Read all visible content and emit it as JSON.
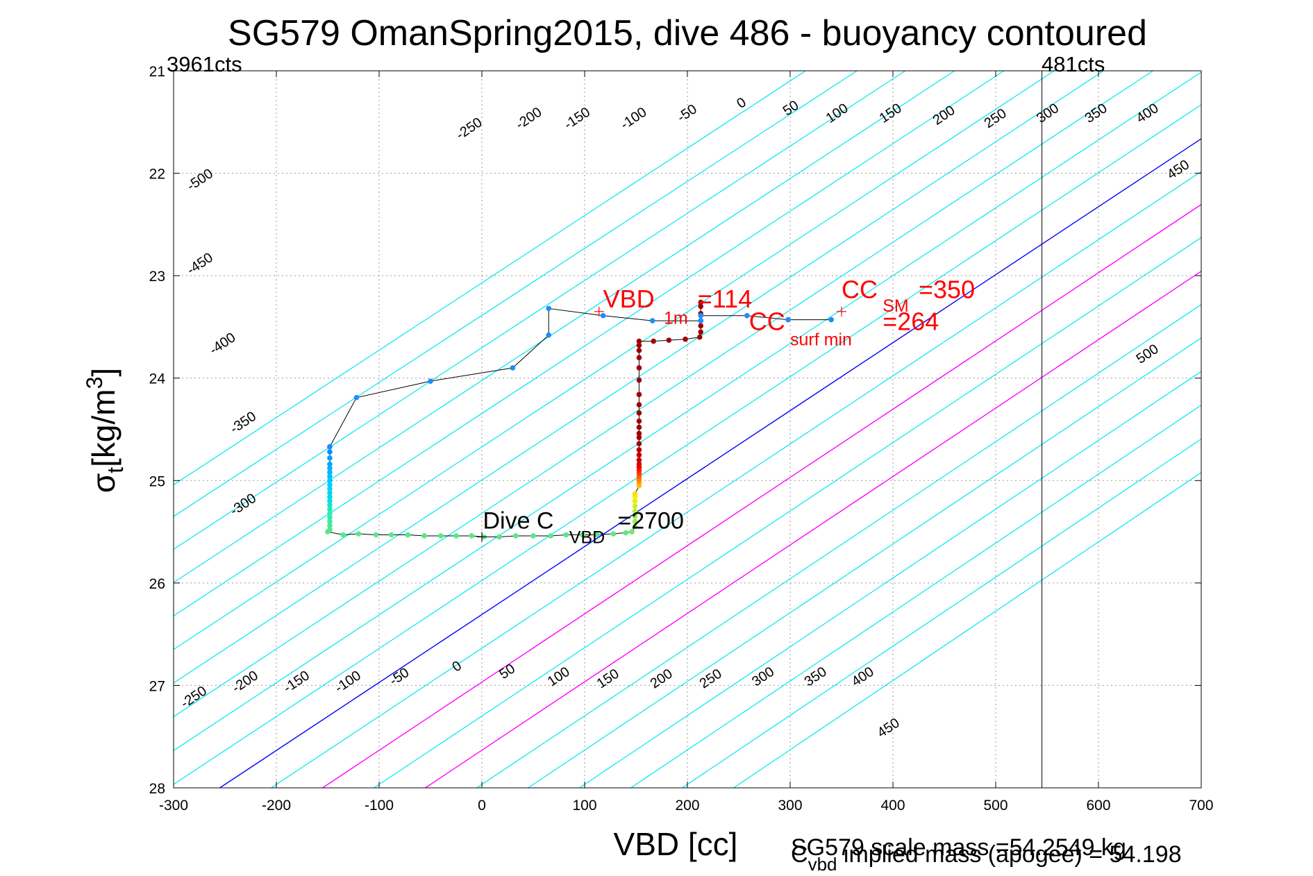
{
  "chart_data": {
    "type": "scatter",
    "title": "SG579 OmanSpring2015, dive 486 - buoyancy contoured",
    "xlabel": "VBD [cc]",
    "ylabel_main": "σ",
    "ylabel_sub": "t",
    "ylabel_unit": "[kg/m",
    "ylabel_sup": "3",
    "ylabel_close": "]",
    "xlim": [
      -300,
      700
    ],
    "ylim": [
      21,
      28
    ],
    "y_reversed": true,
    "grid": true,
    "x_ticks": [
      "-300",
      "-200",
      "-100",
      "0",
      "100",
      "200",
      "300",
      "400",
      "500",
      "600",
      "700"
    ],
    "y_ticks": [
      "21",
      "22",
      "23",
      "24",
      "25",
      "26",
      "27",
      "28"
    ],
    "corner_labels": {
      "left": "3961cts",
      "right": "481cts"
    },
    "limit_line_x": 545,
    "contour_colors": {
      "default": "#00e5ee",
      "zero": "#0000ff",
      "markers": "#ff00ff"
    },
    "contours": {
      "values": [
        -500,
        -450,
        -400,
        -350,
        -300,
        -250,
        -200,
        -150,
        -100,
        -50,
        0,
        50,
        100,
        150,
        200,
        250,
        300,
        350,
        400,
        450,
        500
      ],
      "offsets": [
        [
          -750,
          -725
        ],
        [
          -705,
          -675
        ],
        [
          -655,
          -628
        ],
        [
          -605,
          -580
        ],
        [
          -555,
          -532
        ],
        [
          -505,
          -483
        ],
        [
          -455,
          -435
        ],
        [
          -405,
          -387
        ],
        [
          -355,
          -338
        ],
        [
          -305,
          -290
        ],
        [
          -255,
          -240
        ],
        [
          -205,
          -192
        ],
        [
          -155,
          -144
        ],
        [
          -105,
          -96
        ],
        [
          -55,
          -47
        ],
        [
          -5,
          1
        ],
        [
          45,
          49
        ],
        [
          95,
          97
        ],
        [
          145,
          145
        ],
        [
          195,
          193
        ],
        [
          245,
          240
        ]
      ],
      "marked": [
        100,
        200
      ],
      "top_labels": [
        {
          "text": "-500",
          "x": -272,
          "y": 22.1
        },
        {
          "text": "-450",
          "x": -272,
          "y": 22.92
        },
        {
          "text": "-400",
          "x": -250,
          "y": 23.7
        },
        {
          "text": "-350",
          "x": -230,
          "y": 24.47
        },
        {
          "text": "-300",
          "x": -230,
          "y": 25.27
        },
        {
          "text": "-250",
          "x": -10,
          "y": 21.6
        },
        {
          "text": "-200",
          "x": 48,
          "y": 21.5
        },
        {
          "text": "-150",
          "x": 95,
          "y": 21.5
        },
        {
          "text": "-100",
          "x": 150,
          "y": 21.5
        },
        {
          "text": "-50",
          "x": 202,
          "y": 21.45
        },
        {
          "text": "0",
          "x": 255,
          "y": 21.35
        },
        {
          "text": "50",
          "x": 303,
          "y": 21.4
        },
        {
          "text": "100",
          "x": 348,
          "y": 21.45
        },
        {
          "text": "150",
          "x": 400,
          "y": 21.45
        },
        {
          "text": "200",
          "x": 452,
          "y": 21.47
        },
        {
          "text": "250",
          "x": 502,
          "y": 21.5
        },
        {
          "text": "300",
          "x": 553,
          "y": 21.45
        },
        {
          "text": "350",
          "x": 600,
          "y": 21.45
        },
        {
          "text": "400",
          "x": 650,
          "y": 21.45
        },
        {
          "text": "450",
          "x": 680,
          "y": 22.0
        },
        {
          "text": "500",
          "x": 650,
          "y": 23.8
        }
      ],
      "bottom_labels": [
        {
          "text": "-250",
          "x": -278,
          "y": 27.15
        },
        {
          "text": "-200",
          "x": -228,
          "y": 27.0
        },
        {
          "text": "-150",
          "x": -178,
          "y": 27.0
        },
        {
          "text": "-100",
          "x": -128,
          "y": 27.0
        },
        {
          "text": "-50",
          "x": -78,
          "y": 26.95
        },
        {
          "text": "0",
          "x": -22,
          "y": 26.85
        },
        {
          "text": "50",
          "x": 27,
          "y": 26.9
        },
        {
          "text": "100",
          "x": 77,
          "y": 26.95
        },
        {
          "text": "150",
          "x": 125,
          "y": 26.97
        },
        {
          "text": "200",
          "x": 177,
          "y": 26.97
        },
        {
          "text": "250",
          "x": 225,
          "y": 26.97
        },
        {
          "text": "300",
          "x": 276,
          "y": 26.95
        },
        {
          "text": "350",
          "x": 327,
          "y": 26.95
        },
        {
          "text": "400",
          "x": 373,
          "y": 26.95
        },
        {
          "text": "450",
          "x": 398,
          "y": 27.45
        }
      ]
    },
    "series": [
      {
        "name": "climb",
        "line_color": "#000000",
        "points": [
          [
            -148,
            24.67
          ],
          [
            -148,
            24.72
          ],
          [
            -148,
            24.78
          ],
          [
            -148,
            24.84
          ],
          [
            -148,
            24.88
          ],
          [
            -148,
            24.92
          ],
          [
            -148,
            24.96
          ],
          [
            -148,
            25.0
          ],
          [
            -148,
            25.04
          ],
          [
            -148,
            25.08
          ],
          [
            -148,
            25.12
          ],
          [
            -148,
            25.16
          ],
          [
            -148,
            25.2
          ],
          [
            -148,
            25.24
          ],
          [
            -148,
            25.28
          ],
          [
            -148,
            25.32
          ],
          [
            -148,
            25.36
          ],
          [
            -148,
            25.4
          ],
          [
            -148,
            25.44
          ],
          [
            -148,
            25.48
          ],
          [
            -150,
            25.5
          ],
          [
            -135,
            25.53
          ],
          [
            -120,
            25.52
          ],
          [
            -103,
            25.53
          ],
          [
            -88,
            25.53
          ],
          [
            -72,
            25.53
          ],
          [
            -56,
            25.54
          ],
          [
            -40,
            25.54
          ],
          [
            -25,
            25.54
          ],
          [
            -10,
            25.54
          ],
          [
            2,
            25.55
          ],
          [
            17,
            25.55
          ],
          [
            33,
            25.54
          ],
          [
            50,
            25.54
          ],
          [
            67,
            25.54
          ],
          [
            82,
            25.53
          ],
          [
            98,
            25.53
          ],
          [
            112,
            25.53
          ],
          [
            128,
            25.52
          ],
          [
            140,
            25.51
          ],
          [
            146,
            25.5
          ],
          [
            149,
            25.45
          ],
          [
            149,
            25.4
          ],
          [
            149,
            25.35
          ],
          [
            149,
            25.3
          ],
          [
            149,
            25.25
          ],
          [
            149,
            25.2
          ],
          [
            149,
            25.16
          ],
          [
            149,
            25.13
          ],
          [
            153,
            25.05
          ],
          [
            153,
            25.02
          ],
          [
            153,
            24.99
          ],
          [
            153,
            24.96
          ],
          [
            153,
            24.93
          ],
          [
            153,
            24.9
          ],
          [
            153,
            24.87
          ],
          [
            153,
            24.84
          ],
          [
            153,
            24.8
          ],
          [
            153,
            24.75
          ],
          [
            153,
            24.7
          ],
          [
            153,
            24.64
          ],
          [
            153,
            24.58
          ],
          [
            153,
            24.54
          ],
          [
            153,
            24.48
          ],
          [
            153,
            24.42
          ],
          [
            153,
            24.34
          ],
          [
            153,
            24.26
          ],
          [
            153,
            24.16
          ],
          [
            153,
            24.02
          ],
          [
            153,
            23.9
          ],
          [
            153,
            23.8
          ],
          [
            153,
            23.73
          ],
          [
            153,
            23.68
          ],
          [
            153,
            23.64
          ],
          [
            167,
            23.64
          ],
          [
            182,
            23.63
          ],
          [
            198,
            23.62
          ],
          [
            212,
            23.6
          ],
          [
            213,
            23.55
          ],
          [
            213,
            23.49
          ],
          [
            213,
            23.44
          ],
          [
            213,
            23.37
          ],
          [
            213,
            23.3
          ],
          [
            213,
            23.26
          ],
          [
            213,
            23.39
          ],
          [
            258,
            23.39
          ],
          [
            298,
            23.43
          ],
          [
            340,
            23.43
          ]
        ],
        "point_colors": [
          "#0080ff",
          "#0090ff",
          "#00a0ff",
          "#00a8ff",
          "#00b0ff",
          "#00b8ff",
          "#00c0ff",
          "#00c8ff",
          "#00d0ff",
          "#00d4f8",
          "#00d8f0",
          "#00dce8",
          "#00e0e0",
          "#10e4d0",
          "#20e8c0",
          "#30e8b0",
          "#38e8a8",
          "#40e8a0",
          "#48e898",
          "#50e890",
          "#58e888",
          "#58e888",
          "#58e888",
          "#58e888",
          "#58e888",
          "#58e888",
          "#58e888",
          "#58e888",
          "#58e888",
          "#58e888",
          "#58e888",
          "#58e888",
          "#58e888",
          "#58e888",
          "#58e888",
          "#58e888",
          "#58e888",
          "#58e888",
          "#58e888",
          "#60e880",
          "#70ea70",
          "#80f060",
          "#90f050",
          "#a0f040",
          "#b8f030",
          "#d0f020",
          "#e8f010",
          "#fff000",
          "#ffe000",
          "#ffc000",
          "#ffa000",
          "#ff8000",
          "#ff6000",
          "#ff4000",
          "#ff2000",
          "#f00000",
          "#e00000",
          "#d00000",
          "#c00000",
          "#b40000",
          "#a80000",
          "#a00000",
          "#a00000",
          "#a00000",
          "#a00000",
          "#a00000",
          "#a00000",
          "#a00000",
          "#a00000",
          "#a00000",
          "#a00000",
          "#a00000",
          "#a00000",
          "#a00000",
          "#a00000",
          "#a00000",
          "#a00000",
          "#a00000",
          "#a00000",
          "#a00000",
          "#a00000",
          "#a00000",
          "#a00000",
          "#a00000",
          "#1e8cff",
          "#1e8cff",
          "#1e8cff",
          "#1e8cff"
        ]
      },
      {
        "name": "dive",
        "line_color": "#000000",
        "points": [
          [
            -148,
            24.67
          ],
          [
            -122,
            24.19
          ],
          [
            -50,
            24.03
          ],
          [
            30,
            23.9
          ],
          [
            65,
            23.58
          ],
          [
            65,
            23.32
          ],
          [
            118,
            23.39
          ],
          [
            166,
            23.44
          ],
          [
            213,
            23.44
          ]
        ],
        "point_colors": [
          "#1e8cff",
          "#1e8cff",
          "#1e8cff",
          "#1e8cff",
          "#1e8cff",
          "#1e8cff",
          "#1e8cff",
          "#1e8cff",
          "#1e8cff"
        ]
      }
    ],
    "annotations": [
      {
        "id": "vbd1m",
        "main": "VBD",
        "sub": "1m",
        "tail": "=114",
        "color": "#ff0000",
        "marker": [
          114,
          23.35
        ],
        "anchor": [
          118,
          23.31
        ],
        "sub_anchor": [
          177,
          23.47
        ],
        "tail_anchor": [
          210,
          23.31
        ]
      },
      {
        "id": "ccsm",
        "main": "CC",
        "sub": "SM",
        "tail": "=350",
        "color": "#ff0000",
        "marker": [
          350,
          23.35
        ],
        "anchor": [
          350,
          23.22
        ],
        "sub_anchor": [
          390,
          23.35
        ],
        "tail_anchor": [
          425,
          23.22
        ]
      },
      {
        "id": "ccsurf",
        "main": "CC",
        "sub": "surf min",
        "tail": "=264",
        "color": "#ff0000",
        "marker": null,
        "anchor": [
          260,
          23.53
        ],
        "sub_anchor": [
          300,
          23.68
        ],
        "tail_anchor": [
          390,
          23.53
        ]
      },
      {
        "id": "divec",
        "main": "Dive C",
        "sub": "VBD",
        "tail": "=2700",
        "color": "#000000",
        "marker": [
          0,
          25.55
        ],
        "anchor": [
          1,
          25.47
        ],
        "sub_anchor": [
          85,
          25.61
        ],
        "tail_anchor": [
          132,
          25.47
        ]
      }
    ]
  },
  "footer": {
    "scale_mass": "SG579 scale mass =54.2549 kg",
    "implied_main": "C",
    "implied_sub": "vbd",
    "implied_tail": " implied mass (apogee) = 54.198"
  }
}
